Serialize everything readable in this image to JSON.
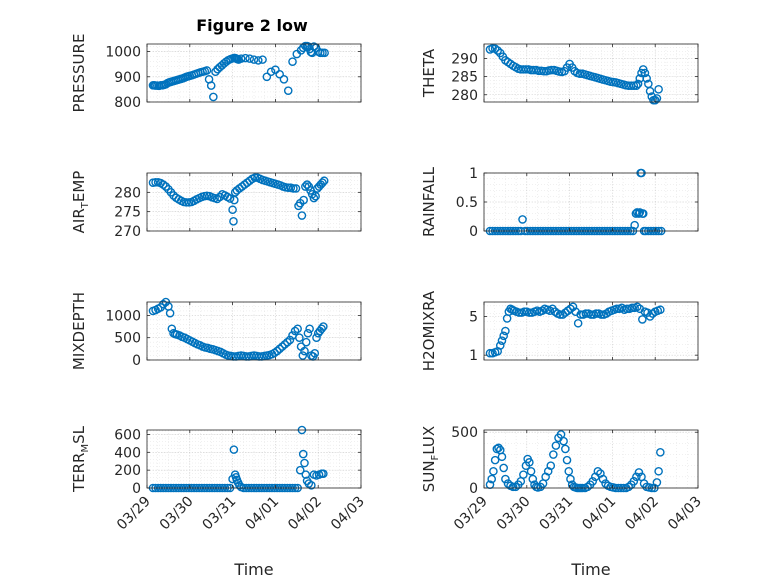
{
  "figure": {
    "title": "Figure 2 low",
    "marker_color": "#0072BD",
    "x_ticks": [
      "03/29",
      "03/30",
      "03/31",
      "04/01",
      "04/02",
      "04/03"
    ],
    "x_label": "Time"
  },
  "chart_data": [
    {
      "type": "scatter",
      "ylabel": "PRESSURE",
      "ylim": [
        800,
        1030
      ],
      "yticks": [
        800,
        900,
        1000
      ],
      "grid": true,
      "x": [
        0.14,
        0.17,
        0.2,
        0.24,
        0.28,
        0.32,
        0.36,
        0.4,
        0.44,
        0.48,
        0.52,
        0.56,
        0.6,
        0.64,
        0.68,
        0.72,
        0.76,
        0.8,
        0.84,
        0.88,
        0.92,
        0.96,
        1.0,
        1.05,
        1.1,
        1.15,
        1.2,
        1.25,
        1.3,
        1.35,
        1.4,
        1.45,
        1.5,
        1.55,
        1.6,
        1.65,
        1.7,
        1.75,
        1.8,
        1.85,
        1.9,
        1.95,
        2.0,
        2.04,
        2.07,
        2.09,
        2.11,
        2.14,
        2.2,
        2.3,
        2.4,
        2.5,
        2.6,
        2.7,
        2.8,
        2.9,
        3.0,
        3.1,
        3.2,
        3.3,
        3.4,
        3.5,
        3.6,
        3.65,
        3.7,
        3.74,
        3.77,
        3.8,
        3.83,
        3.86,
        3.9,
        3.95,
        4.0,
        4.05,
        4.1,
        4.15
      ],
      "y": [
        866,
        866,
        865,
        865,
        864,
        866,
        866,
        868,
        870,
        875,
        878,
        880,
        882,
        884,
        886,
        888,
        890,
        892,
        894,
        897,
        900,
        902,
        904,
        906,
        909,
        912,
        915,
        918,
        920,
        922,
        925,
        890,
        865,
        820,
        920,
        930,
        938,
        945,
        953,
        960,
        966,
        970,
        973,
        975,
        974,
        972,
        970,
        968,
        972,
        974,
        972,
        968,
        965,
        968,
        900,
        920,
        928,
        910,
        890,
        845,
        960,
        990,
        1005,
        1015,
        1022,
        1022,
        1020,
        1010,
        998,
        995,
        1020,
        1015,
        1000,
        995,
        995,
        995
      ]
    },
    {
      "type": "scatter",
      "ylabel": "THETA",
      "ylim": [
        278,
        294
      ],
      "yticks": [
        280,
        285,
        290
      ],
      "grid": true,
      "x": [
        0.14,
        0.2,
        0.26,
        0.32,
        0.38,
        0.44,
        0.5,
        0.56,
        0.62,
        0.68,
        0.74,
        0.8,
        0.86,
        0.92,
        0.98,
        1.04,
        1.1,
        1.16,
        1.22,
        1.28,
        1.34,
        1.4,
        1.46,
        1.52,
        1.58,
        1.64,
        1.7,
        1.76,
        1.82,
        1.88,
        1.94,
        2.0,
        2.06,
        2.12,
        2.18,
        2.24,
        2.3,
        2.36,
        2.42,
        2.48,
        2.54,
        2.6,
        2.66,
        2.72,
        2.78,
        2.84,
        2.9,
        2.96,
        3.02,
        3.08,
        3.14,
        3.2,
        3.26,
        3.32,
        3.38,
        3.44,
        3.5,
        3.56,
        3.6,
        3.64,
        3.68,
        3.72,
        3.76,
        3.8,
        3.84,
        3.88,
        3.92,
        3.96,
        4.0,
        4.04,
        4.08
      ],
      "y": [
        292.5,
        292.8,
        292.7,
        292.2,
        291.5,
        290.5,
        289.5,
        289,
        288.5,
        288,
        287.6,
        287.2,
        287,
        287,
        287,
        287,
        286.8,
        286.8,
        286.8,
        286.6,
        286.6,
        286.5,
        286.5,
        286.7,
        286.8,
        286.8,
        286.6,
        286.4,
        286.3,
        286.5,
        287.5,
        288.5,
        287.5,
        286.5,
        286,
        285.8,
        285.8,
        285.6,
        285.4,
        285.2,
        285,
        284.8,
        284.6,
        284.4,
        284.2,
        284,
        283.8,
        283.6,
        283.5,
        283.4,
        283.2,
        283,
        282.8,
        282.6,
        282.5,
        282.5,
        282.5,
        282.5,
        283,
        284.5,
        286,
        287,
        286,
        284.5,
        283,
        281,
        279.5,
        278.5,
        278.5,
        279,
        281.5
      ]
    },
    {
      "type": "scatter",
      "ylabel": "AIR_TEMP",
      "ylim": [
        270,
        285
      ],
      "yticks": [
        270,
        275,
        280
      ],
      "grid": true,
      "x": [
        0.14,
        0.2,
        0.26,
        0.32,
        0.38,
        0.44,
        0.5,
        0.56,
        0.62,
        0.68,
        0.74,
        0.8,
        0.86,
        0.92,
        0.98,
        1.04,
        1.1,
        1.16,
        1.22,
        1.28,
        1.34,
        1.4,
        1.46,
        1.52,
        1.58,
        1.64,
        1.7,
        1.76,
        1.82,
        1.88,
        1.94,
        2.0,
        2.02,
        2.04,
        2.06,
        2.1,
        2.16,
        2.22,
        2.28,
        2.34,
        2.4,
        2.46,
        2.52,
        2.58,
        2.64,
        2.7,
        2.76,
        2.82,
        2.88,
        2.94,
        3.0,
        3.06,
        3.12,
        3.18,
        3.24,
        3.3,
        3.36,
        3.42,
        3.48,
        3.54,
        3.58,
        3.62,
        3.66,
        3.7,
        3.74,
        3.78,
        3.82,
        3.86,
        3.9,
        3.94,
        3.98,
        4.02,
        4.06,
        4.1,
        4.14
      ],
      "y": [
        282.5,
        282.6,
        282.6,
        282.4,
        282,
        281.5,
        280.8,
        280,
        279.2,
        278.6,
        278.2,
        277.8,
        277.5,
        277.4,
        277.4,
        277.5,
        277.8,
        278.2,
        278.5,
        278.8,
        279,
        279.1,
        279,
        278.7,
        278.5,
        278.3,
        278.8,
        279.5,
        279.2,
        278.8,
        278.4,
        275.5,
        272.5,
        278,
        280,
        280.5,
        281,
        281.5,
        282,
        282.5,
        283,
        283.5,
        283.8,
        283.8,
        283.5,
        283.2,
        283,
        282.8,
        282.6,
        282.4,
        282.2,
        282,
        281.8,
        281.5,
        281.3,
        281.2,
        281.2,
        281,
        281,
        276.5,
        277.2,
        274,
        278,
        281.5,
        282,
        281.5,
        280.5,
        279.5,
        278.5,
        279,
        281,
        281.5,
        282,
        282.5,
        283
      ]
    },
    {
      "type": "scatter",
      "ylabel": "RAINFALL",
      "ylim": [
        0,
        1
      ],
      "yticks": [
        0,
        0.5,
        1
      ],
      "grid": true,
      "x": [
        0.14,
        0.2,
        0.26,
        0.32,
        0.38,
        0.44,
        0.5,
        0.56,
        0.62,
        0.68,
        0.74,
        0.8,
        0.86,
        0.9,
        0.96,
        1.02,
        1.08,
        1.14,
        1.2,
        1.26,
        1.32,
        1.38,
        1.44,
        1.5,
        1.56,
        1.62,
        1.68,
        1.74,
        1.8,
        1.86,
        1.92,
        1.98,
        2.04,
        2.1,
        2.16,
        2.22,
        2.28,
        2.34,
        2.4,
        2.46,
        2.52,
        2.58,
        2.64,
        2.7,
        2.76,
        2.82,
        2.88,
        2.94,
        3.0,
        3.06,
        3.12,
        3.18,
        3.24,
        3.3,
        3.36,
        3.42,
        3.48,
        3.52,
        3.55,
        3.58,
        3.62,
        3.64,
        3.66,
        3.68,
        3.7,
        3.72,
        3.74,
        3.78,
        3.84,
        3.9,
        3.96,
        4.02,
        4.08,
        4.14
      ],
      "y": [
        0,
        0,
        0,
        0,
        0,
        0,
        0,
        0,
        0,
        0,
        0,
        0,
        0,
        0.2,
        0,
        0,
        0,
        0,
        0,
        0,
        0,
        0,
        0,
        0,
        0,
        0,
        0,
        0,
        0,
        0,
        0,
        0,
        0,
        0,
        0,
        0,
        0,
        0,
        0,
        0,
        0,
        0,
        0,
        0,
        0,
        0,
        0,
        0,
        0,
        0,
        0,
        0,
        0,
        0,
        0,
        0,
        0,
        0.1,
        0.3,
        0.32,
        0.3,
        0.32,
        1.0,
        1.0,
        0.3,
        0.3,
        0,
        0,
        0,
        0,
        0,
        0,
        0,
        0
      ]
    },
    {
      "type": "scatter",
      "ylabel": "MIXDEPTH",
      "ylim": [
        0,
        1300
      ],
      "yticks": [
        0,
        500,
        1000
      ],
      "grid": true,
      "x": [
        0.14,
        0.2,
        0.26,
        0.32,
        0.38,
        0.44,
        0.5,
        0.54,
        0.58,
        0.62,
        0.66,
        0.7,
        0.76,
        0.82,
        0.88,
        0.94,
        1.0,
        1.06,
        1.12,
        1.18,
        1.24,
        1.3,
        1.36,
        1.42,
        1.48,
        1.54,
        1.6,
        1.66,
        1.72,
        1.78,
        1.84,
        1.9,
        1.96,
        2.02,
        2.08,
        2.14,
        2.2,
        2.26,
        2.32,
        2.38,
        2.44,
        2.5,
        2.56,
        2.62,
        2.68,
        2.74,
        2.8,
        2.86,
        2.92,
        2.98,
        3.04,
        3.1,
        3.16,
        3.22,
        3.28,
        3.34,
        3.4,
        3.46,
        3.52,
        3.56,
        3.6,
        3.64,
        3.68,
        3.72,
        3.76,
        3.8,
        3.84,
        3.88,
        3.92,
        3.96,
        4.0,
        4.04,
        4.08,
        4.12
      ],
      "y": [
        1100,
        1120,
        1150,
        1180,
        1250,
        1300,
        1200,
        1050,
        700,
        600,
        580,
        570,
        550,
        520,
        500,
        470,
        440,
        410,
        380,
        350,
        330,
        300,
        280,
        270,
        250,
        240,
        220,
        200,
        180,
        150,
        120,
        100,
        90,
        80,
        80,
        90,
        100,
        90,
        80,
        80,
        90,
        100,
        90,
        80,
        80,
        90,
        100,
        110,
        130,
        160,
        200,
        250,
        300,
        350,
        400,
        450,
        550,
        650,
        700,
        500,
        300,
        100,
        200,
        400,
        600,
        700,
        100,
        80,
        150,
        500,
        600,
        650,
        700,
        750
      ]
    },
    {
      "type": "scatter",
      "ylabel": "H2OMIXRA",
      "ylim": [
        0.5,
        6.5
      ],
      "yticks": [
        1,
        5
      ],
      "grid": true,
      "x": [
        0.14,
        0.2,
        0.26,
        0.32,
        0.38,
        0.42,
        0.46,
        0.5,
        0.54,
        0.58,
        0.62,
        0.66,
        0.7,
        0.76,
        0.82,
        0.88,
        0.94,
        1.0,
        1.06,
        1.12,
        1.18,
        1.24,
        1.3,
        1.36,
        1.42,
        1.48,
        1.54,
        1.6,
        1.66,
        1.72,
        1.78,
        1.84,
        1.9,
        1.96,
        2.02,
        2.08,
        2.14,
        2.2,
        2.26,
        2.32,
        2.38,
        2.44,
        2.5,
        2.56,
        2.62,
        2.68,
        2.74,
        2.8,
        2.86,
        2.92,
        2.98,
        3.04,
        3.1,
        3.16,
        3.22,
        3.28,
        3.34,
        3.4,
        3.46,
        3.52,
        3.58,
        3.64,
        3.7,
        3.76,
        3.82,
        3.88,
        3.94,
        4.0,
        4.06,
        4.12
      ],
      "y": [
        1.2,
        1.2,
        1.3,
        1.4,
        2.0,
        2.5,
        3.0,
        3.5,
        4.8,
        5.5,
        5.8,
        5.7,
        5.6,
        5.5,
        5.4,
        5.4,
        5.5,
        5.5,
        5.4,
        5.4,
        5.5,
        5.6,
        5.5,
        5.6,
        5.8,
        5.7,
        5.6,
        5.8,
        5.5,
        5.3,
        5.2,
        5.2,
        5.4,
        5.6,
        5.8,
        6.0,
        5.5,
        4.3,
        5.2,
        5.2,
        5.3,
        5.3,
        5.2,
        5.2,
        5.3,
        5.3,
        5.2,
        5.2,
        5.3,
        5.5,
        5.6,
        5.7,
        5.8,
        5.8,
        5.9,
        5.7,
        5.8,
        5.8,
        5.9,
        5.9,
        6.0,
        5.8,
        4.7,
        5.5,
        5.4,
        5.0,
        5.3,
        5.5,
        5.6,
        5.7
      ]
    },
    {
      "type": "scatter",
      "ylabel": "TERR_MSL",
      "ylim": [
        0,
        650
      ],
      "yticks": [
        0,
        200,
        400,
        600
      ],
      "grid": true,
      "x": [
        0.14,
        0.2,
        0.26,
        0.32,
        0.38,
        0.44,
        0.5,
        0.56,
        0.62,
        0.68,
        0.74,
        0.8,
        0.86,
        0.92,
        0.98,
        1.04,
        1.1,
        1.16,
        1.22,
        1.28,
        1.34,
        1.4,
        1.46,
        1.52,
        1.58,
        1.64,
        1.7,
        1.76,
        1.82,
        1.88,
        1.94,
        2.0,
        2.03,
        2.06,
        2.08,
        2.1,
        2.13,
        2.16,
        2.2,
        2.26,
        2.32,
        2.38,
        2.44,
        2.5,
        2.56,
        2.62,
        2.68,
        2.74,
        2.8,
        2.86,
        2.92,
        2.98,
        3.04,
        3.1,
        3.16,
        3.22,
        3.28,
        3.34,
        3.4,
        3.46,
        3.52,
        3.58,
        3.62,
        3.65,
        3.68,
        3.71,
        3.74,
        3.78,
        3.84,
        3.9,
        3.96,
        4.02,
        4.08,
        4.12
      ],
      "y": [
        0,
        0,
        0,
        0,
        0,
        0,
        0,
        0,
        0,
        0,
        0,
        0,
        0,
        0,
        0,
        0,
        0,
        0,
        0,
        0,
        0,
        0,
        0,
        0,
        0,
        0,
        0,
        0,
        0,
        0,
        0,
        100,
        430,
        150,
        120,
        90,
        60,
        30,
        10,
        0,
        0,
        0,
        0,
        0,
        0,
        0,
        0,
        0,
        0,
        0,
        0,
        0,
        0,
        0,
        0,
        0,
        0,
        0,
        0,
        0,
        0,
        200,
        650,
        380,
        280,
        150,
        80,
        50,
        30,
        150,
        140,
        150,
        160,
        160
      ]
    },
    {
      "type": "scatter",
      "ylabel": "SUN_FLUX",
      "ylim": [
        0,
        520
      ],
      "yticks": [
        0,
        500
      ],
      "grid": true,
      "x": [
        0.14,
        0.18,
        0.22,
        0.26,
        0.3,
        0.34,
        0.38,
        0.42,
        0.46,
        0.5,
        0.56,
        0.62,
        0.68,
        0.74,
        0.8,
        0.86,
        0.92,
        0.98,
        1.02,
        1.06,
        1.1,
        1.14,
        1.18,
        1.22,
        1.26,
        1.32,
        1.38,
        1.44,
        1.5,
        1.56,
        1.62,
        1.68,
        1.74,
        1.8,
        1.86,
        1.9,
        1.94,
        1.98,
        2.02,
        2.06,
        2.1,
        2.14,
        2.18,
        2.22,
        2.26,
        2.3,
        2.36,
        2.42,
        2.48,
        2.54,
        2.6,
        2.66,
        2.72,
        2.78,
        2.84,
        2.9,
        2.96,
        3.02,
        3.08,
        3.14,
        3.2,
        3.26,
        3.32,
        3.38,
        3.44,
        3.5,
        3.56,
        3.62,
        3.68,
        3.74,
        3.8,
        3.86,
        3.92,
        3.98,
        4.04,
        4.08,
        4.12
      ],
      "y": [
        30,
        80,
        150,
        250,
        350,
        360,
        340,
        280,
        180,
        80,
        40,
        20,
        10,
        10,
        30,
        60,
        120,
        200,
        260,
        230,
        150,
        80,
        30,
        10,
        5,
        10,
        40,
        100,
        150,
        200,
        300,
        380,
        450,
        480,
        420,
        350,
        250,
        150,
        80,
        30,
        10,
        5,
        0,
        0,
        0,
        0,
        0,
        10,
        30,
        60,
        100,
        150,
        130,
        80,
        40,
        20,
        10,
        5,
        0,
        0,
        0,
        0,
        0,
        10,
        30,
        60,
        100,
        140,
        100,
        40,
        10,
        5,
        0,
        0,
        50,
        150,
        320
      ]
    }
  ]
}
